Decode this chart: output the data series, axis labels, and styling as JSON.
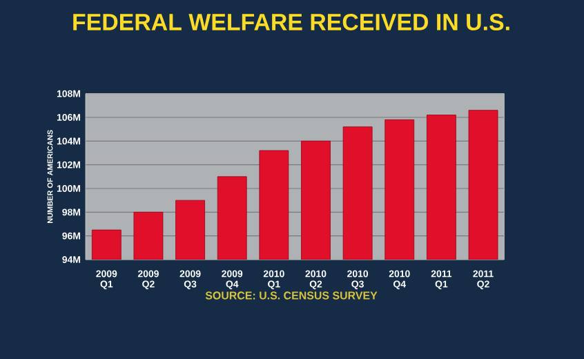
{
  "chart_data": {
    "type": "bar",
    "title": "FEDERAL WELFARE RECEIVED IN U.S.",
    "ylabel": "NUMBER OF AMERICANS",
    "categories": [
      "2009 Q1",
      "2009 Q2",
      "2009 Q3",
      "2009 Q4",
      "2010 Q1",
      "2010 Q2",
      "2010 Q3",
      "2010 Q4",
      "2011 Q1",
      "2011 Q2"
    ],
    "values": [
      96.5,
      98.0,
      99.0,
      101.0,
      103.2,
      104.0,
      105.2,
      105.8,
      106.2,
      106.6
    ],
    "color": "#e0102a",
    "ylim": [
      94,
      108
    ],
    "yticks": [
      {
        "value": 94,
        "label": "94M"
      },
      {
        "value": 96,
        "label": "96M"
      },
      {
        "value": 98,
        "label": "98M"
      },
      {
        "value": 100,
        "label": "100M"
      },
      {
        "value": 102,
        "label": "102M"
      },
      {
        "value": 104,
        "label": "104M"
      },
      {
        "value": 106,
        "label": "106M"
      },
      {
        "value": 108,
        "label": "108M"
      }
    ],
    "grid": "y",
    "annotations": [
      "SOURCE: U.S. CENSUS SURVEY"
    ]
  }
}
